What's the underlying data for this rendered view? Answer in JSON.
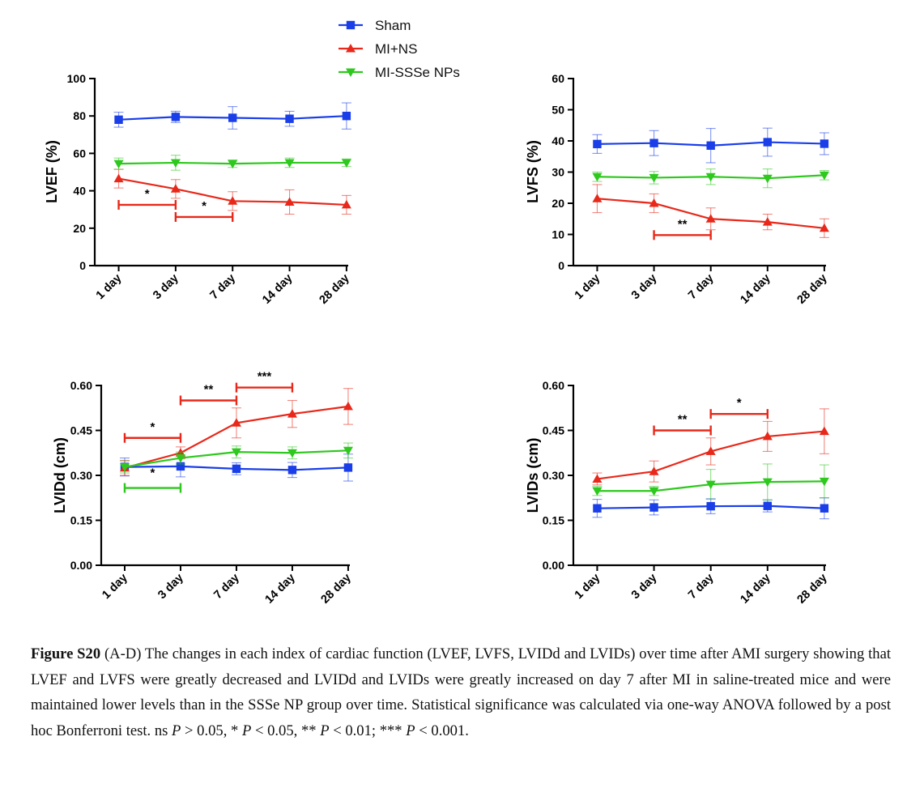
{
  "legend": {
    "items": [
      {
        "label": "Sham",
        "color": "#1a3ee8",
        "marker": "square"
      },
      {
        "label": "MI+NS",
        "color": "#e8281a",
        "marker": "triangle-up"
      },
      {
        "label": "MI-SSSe NPs",
        "color": "#2ec81e",
        "marker": "triangle-down"
      }
    ]
  },
  "chart_data": [
    {
      "type": "line",
      "ylabel": "LVEF (%)",
      "categories": [
        "1 day",
        "3 day",
        "7 day",
        "14 day",
        "28 day"
      ],
      "ylim": [
        0,
        100
      ],
      "yticks": [
        "0",
        "20",
        "40",
        "60",
        "80",
        "100"
      ],
      "series": [
        {
          "name": "Sham",
          "values": [
            78,
            79.5,
            79,
            78.5,
            80
          ],
          "errors": [
            4,
            3,
            6,
            4,
            7
          ]
        },
        {
          "name": "MI+NS",
          "values": [
            46.5,
            41,
            34.5,
            34,
            32.5
          ],
          "errors": [
            5,
            5,
            5,
            6.5,
            5
          ]
        },
        {
          "name": "MI-SSSe NPs",
          "values": [
            54.5,
            55,
            54.5,
            55,
            55
          ],
          "errors": [
            3,
            4,
            2,
            2.5,
            2
          ]
        }
      ],
      "annotations": [
        {
          "text": "*",
          "from": "1 day",
          "to": "3 day",
          "y": 32.5,
          "color": "#e8281a"
        },
        {
          "text": "*",
          "from": "3 day",
          "to": "7 day",
          "y": 26,
          "color": "#e8281a"
        }
      ]
    },
    {
      "type": "line",
      "ylabel": "LVFS (%)",
      "categories": [
        "1 day",
        "3 day",
        "7 day",
        "14 day",
        "28 day"
      ],
      "ylim": [
        0,
        60
      ],
      "yticks": [
        "0",
        "10",
        "20",
        "30",
        "40",
        "50",
        "60"
      ],
      "series": [
        {
          "name": "Sham",
          "values": [
            39,
            39.3,
            38.5,
            39.6,
            39.1
          ],
          "errors": [
            3,
            4,
            5.5,
            4.5,
            3.5
          ]
        },
        {
          "name": "MI+NS",
          "values": [
            21.5,
            20,
            15,
            14,
            12
          ],
          "errors": [
            4.5,
            3,
            3.5,
            2.5,
            3
          ]
        },
        {
          "name": "MI-SSSe NPs",
          "values": [
            28.5,
            28.2,
            28.5,
            28,
            29
          ],
          "errors": [
            1.5,
            2,
            2.5,
            3,
            1.5
          ]
        }
      ],
      "annotations": [
        {
          "text": "**",
          "from": "3 day",
          "to": "7 day",
          "y": 9.8,
          "color": "#e8281a"
        }
      ]
    },
    {
      "type": "line",
      "ylabel": "LVIDd (cm)",
      "categories": [
        "1 day",
        "3 day",
        "7 day",
        "14 day",
        "28 day"
      ],
      "ylim": [
        0,
        0.6
      ],
      "yticks": [
        "0.00",
        "0.15",
        "0.30",
        "0.45",
        "0.60"
      ],
      "series": [
        {
          "name": "Sham",
          "values": [
            0.328,
            0.33,
            0.322,
            0.318,
            0.326
          ],
          "errors": [
            0.03,
            0.035,
            0.02,
            0.025,
            0.045
          ]
        },
        {
          "name": "MI+NS",
          "values": [
            0.325,
            0.375,
            0.475,
            0.505,
            0.53
          ],
          "errors": [
            0.025,
            0.02,
            0.05,
            0.045,
            0.06
          ]
        },
        {
          "name": "MI-SSSe NPs",
          "values": [
            0.328,
            0.358,
            0.378,
            0.375,
            0.383
          ],
          "errors": [
            0.02,
            0.02,
            0.02,
            0.02,
            0.025
          ]
        }
      ],
      "annotations": [
        {
          "text": "*",
          "from": "1 day",
          "to": "3 day",
          "y": 0.425,
          "color": "#e8281a"
        },
        {
          "text": "**",
          "from": "3 day",
          "to": "7 day",
          "y": 0.55,
          "color": "#e8281a"
        },
        {
          "text": "***",
          "from": "7 day",
          "to": "14 day",
          "y": 0.593,
          "color": "#e8281a"
        },
        {
          "text": "*",
          "from": "1 day",
          "to": "3 day",
          "y": 0.258,
          "color": "#2ec81e",
          "label_below": true
        }
      ]
    },
    {
      "type": "line",
      "ylabel": "LVIDs (cm)",
      "categories": [
        "1 day",
        "3 day",
        "7 day",
        "14 day",
        "28 day"
      ],
      "ylim": [
        0,
        0.6
      ],
      "yticks": [
        "0.00",
        "0.15",
        "0.30",
        "0.45",
        "0.60"
      ],
      "series": [
        {
          "name": "Sham",
          "values": [
            0.19,
            0.193,
            0.197,
            0.198,
            0.19
          ],
          "errors": [
            0.03,
            0.025,
            0.025,
            0.02,
            0.035
          ]
        },
        {
          "name": "MI+NS",
          "values": [
            0.288,
            0.313,
            0.38,
            0.43,
            0.447
          ],
          "errors": [
            0.02,
            0.035,
            0.045,
            0.05,
            0.075
          ]
        },
        {
          "name": "MI-SSSe NPs",
          "values": [
            0.248,
            0.248,
            0.27,
            0.278,
            0.28
          ],
          "errors": [
            0.015,
            0.015,
            0.05,
            0.06,
            0.055
          ]
        }
      ],
      "annotations": [
        {
          "text": "**",
          "from": "3 day",
          "to": "7 day",
          "y": 0.45,
          "color": "#e8281a"
        },
        {
          "text": "*",
          "from": "7 day",
          "to": "14 day",
          "y": 0.505,
          "color": "#e8281a"
        }
      ]
    }
  ],
  "caption": {
    "label": "Figure S20",
    "p1": " (A-D) The changes in each index of cardiac function (LVEF, LVFS, LVIDd and LVIDs) over time after AMI surgery showing that LVEF and LVFS were greatly decreased and LVIDd and LVIDs were greatly increased on day 7 after MI in saline-treated mice and were maintained lower levels than in the SSSe NP group over time. Statistical significance was calculated via one-way ANOVA followed by a post hoc Bonferroni test. ns ",
    "p_sym": "P",
    "t1": " > 0.05, * ",
    "t2": " < 0.05, ** ",
    "t3": " < 0.01; *** ",
    "t4": " < 0.001."
  }
}
